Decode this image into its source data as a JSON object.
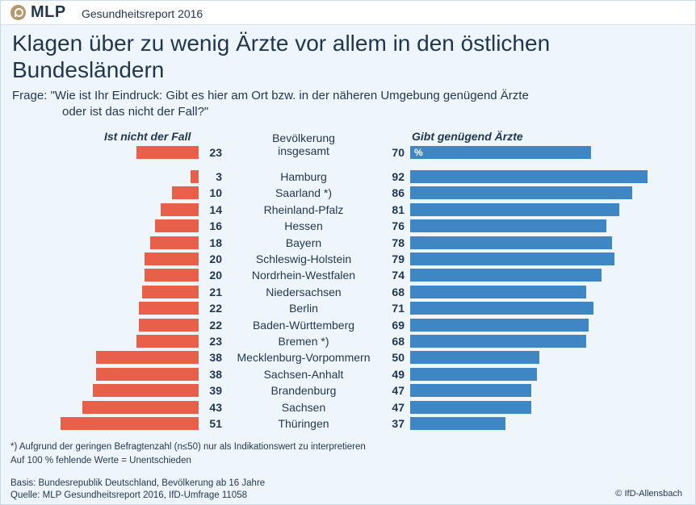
{
  "brand": {
    "logo_text": "MLP",
    "report_title": "Gesundheitsreport 2016"
  },
  "headline": {
    "line1": "Klagen über zu wenig Ärzte vor allem in den östlichen",
    "line2": "Bundesländern"
  },
  "question": {
    "line1": "Frage: \"Wie ist Ihr Eindruck: Gibt es hier am Ort bzw. in der näheren Umgebung genügend Ärzte",
    "line2": "oder ist das nicht der Fall?\""
  },
  "chart_data": {
    "type": "bar",
    "left_header": "Ist nicht der Fall",
    "right_header": "Gibt genügend Ärzte",
    "center_header_line1": "Bevölkerung",
    "center_header_line2": "insgesamt",
    "unit_label": "%",
    "total": {
      "left": 23,
      "right": 70
    },
    "categories": [
      "Hamburg",
      "Saarland *)",
      "Rheinland-Pfalz",
      "Hessen",
      "Bayern",
      "Schleswig-Holstein",
      "Nordrhein-Westfalen",
      "Niedersachsen",
      "Berlin",
      "Baden-Württemberg",
      "Bremen *)",
      "Mecklenburg-Vorpommern",
      "Sachsen-Anhalt",
      "Brandenburg",
      "Sachsen",
      "Thüringen"
    ],
    "series": [
      {
        "name": "Ist nicht der Fall",
        "values": [
          3,
          10,
          14,
          16,
          18,
          20,
          20,
          21,
          22,
          22,
          23,
          38,
          38,
          39,
          43,
          51
        ]
      },
      {
        "name": "Gibt genügend Ärzte",
        "values": [
          92,
          86,
          81,
          76,
          78,
          79,
          74,
          68,
          71,
          69,
          68,
          50,
          49,
          47,
          47,
          37
        ]
      }
    ],
    "colors": {
      "left": "#e8604a",
      "right": "#3f87c4"
    }
  },
  "footer": {
    "note1": "*) Aufgrund der geringen Befragtenzahl (n≤50) nur als Indikationswert zu interpretieren",
    "note2": "Auf 100 % fehlende Werte = Unentschieden",
    "basis": "Basis: Bundesrepublik Deutschland, Bevölkerung ab 16 Jahre",
    "source": "Quelle: MLP Gesundheitsreport 2016, IfD-Umfrage 11058",
    "copyright": "© IfD-Allensbach"
  }
}
